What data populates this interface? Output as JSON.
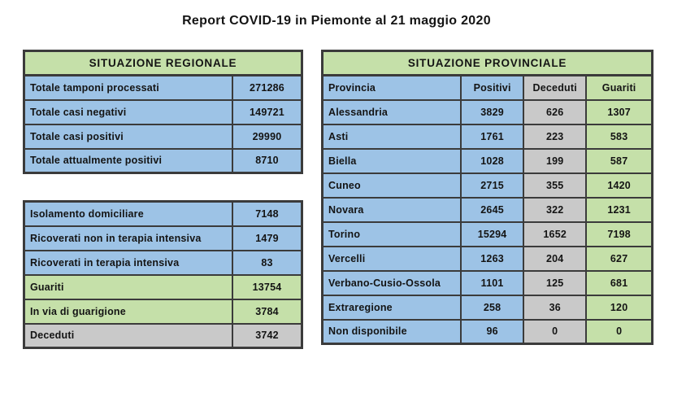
{
  "title": "Report COVID-19 in Piemonte al 21 maggio 2020",
  "regional": {
    "header": "SITUAZIONE REGIONALE",
    "summary_rows": [
      {
        "label": "Totale tamponi processati",
        "value": "271286",
        "color": "blue"
      },
      {
        "label": "Totale casi negativi",
        "value": "149721",
        "color": "blue"
      },
      {
        "label": "Totale casi positivi",
        "value": "29990",
        "color": "blue"
      },
      {
        "label": "Totale attualmente positivi",
        "value": "8710",
        "color": "blue"
      }
    ],
    "detail_rows": [
      {
        "label": "Isolamento domiciliare",
        "value": "7148",
        "color": "blue"
      },
      {
        "label": "Ricoverati non in terapia intensiva",
        "value": "1479",
        "color": "blue"
      },
      {
        "label": "Ricoverati in terapia intensiva",
        "value": "83",
        "color": "blue"
      },
      {
        "label": "Guariti",
        "value": "13754",
        "color": "green"
      },
      {
        "label": "In via di guarigione",
        "value": "3784",
        "color": "green"
      },
      {
        "label": "Deceduti",
        "value": "3742",
        "color": "gray"
      }
    ]
  },
  "provincial": {
    "header": "SITUAZIONE PROVINCIALE",
    "columns": [
      {
        "label": "Provincia",
        "color": "blue",
        "align": "left"
      },
      {
        "label": "Positivi",
        "color": "blue",
        "align": "center"
      },
      {
        "label": "Deceduti",
        "color": "gray",
        "align": "center"
      },
      {
        "label": "Guariti",
        "color": "green",
        "align": "center"
      }
    ],
    "rows": [
      {
        "provincia": "Alessandria",
        "positivi": "3829",
        "deceduti": "626",
        "guariti": "1307"
      },
      {
        "provincia": "Asti",
        "positivi": "1761",
        "deceduti": "223",
        "guariti": "583"
      },
      {
        "provincia": "Biella",
        "positivi": "1028",
        "deceduti": "199",
        "guariti": "587"
      },
      {
        "provincia": "Cuneo",
        "positivi": "2715",
        "deceduti": "355",
        "guariti": "1420"
      },
      {
        "provincia": "Novara",
        "positivi": "2645",
        "deceduti": "322",
        "guariti": "1231"
      },
      {
        "provincia": "Torino",
        "positivi": "15294",
        "deceduti": "1652",
        "guariti": "7198"
      },
      {
        "provincia": "Vercelli",
        "positivi": "1263",
        "deceduti": "204",
        "guariti": "627"
      },
      {
        "provincia": "Verbano-Cusio-Ossola",
        "positivi": "1101",
        "deceduti": "125",
        "guariti": "681"
      },
      {
        "provincia": "Extraregione",
        "positivi": "258",
        "deceduti": "36",
        "guariti": "120"
      },
      {
        "provincia": "Non disponibile",
        "positivi": "96",
        "deceduti": "0",
        "guariti": "0"
      }
    ]
  },
  "colors": {
    "blue": "#9DC3E6",
    "green": "#C5E0A9",
    "gray": "#C9C9C9",
    "border": "#3B3B3B",
    "text": "#141414",
    "background": "#FFFFFF"
  }
}
